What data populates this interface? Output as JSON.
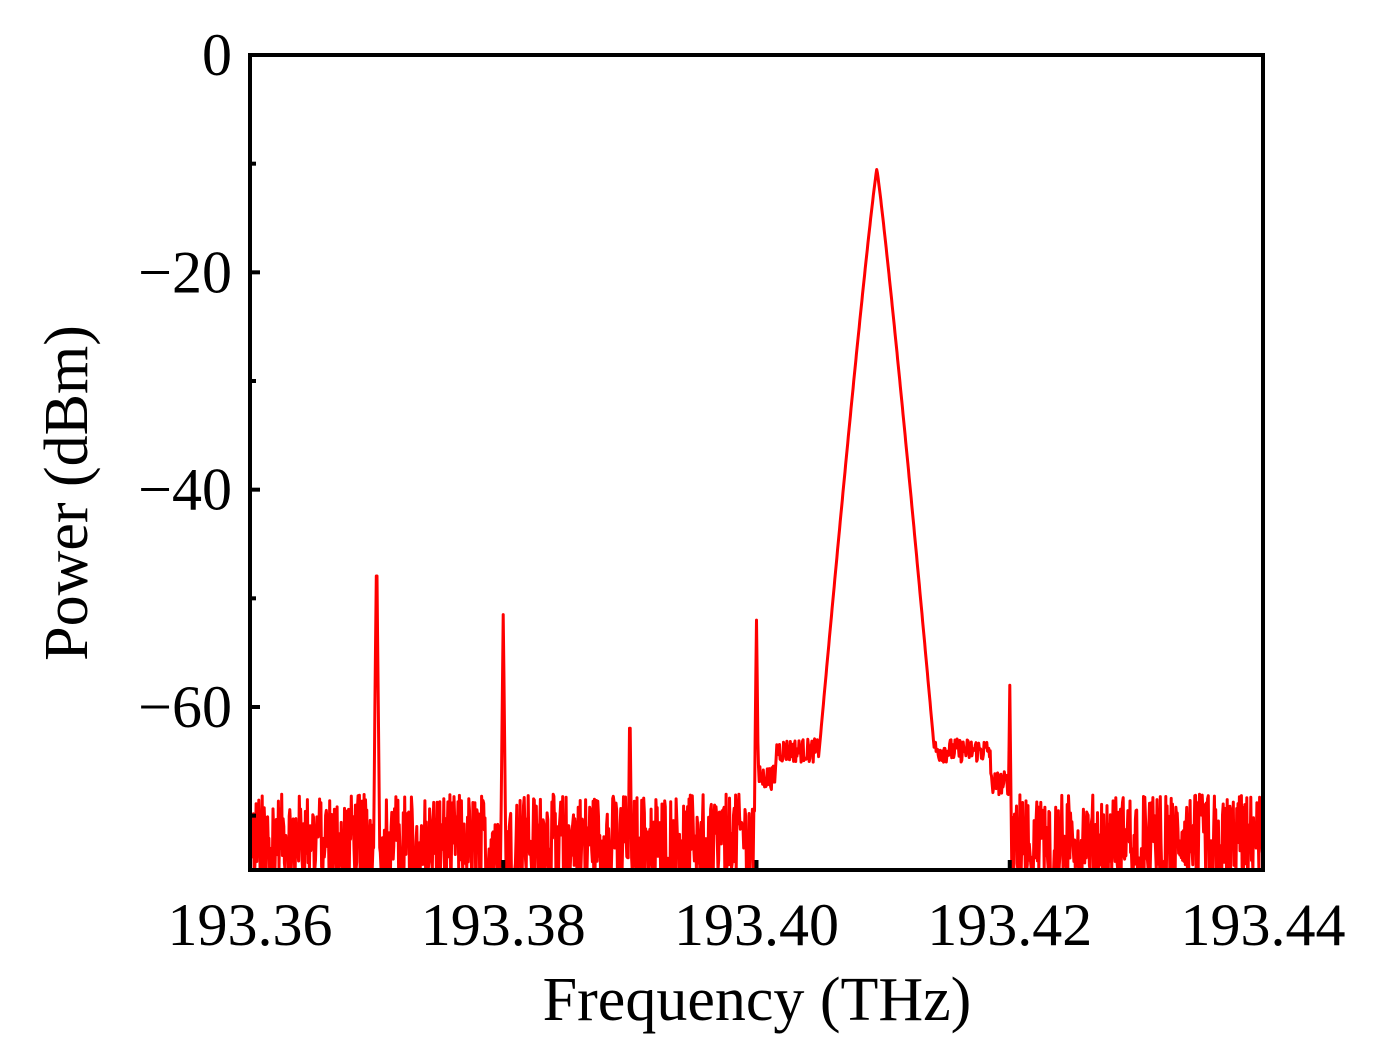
{
  "chart_data": {
    "type": "line",
    "xlabel": "Frequency  (THz)",
    "ylabel": "Power (dBm)",
    "xlim": [
      193.36,
      193.44
    ],
    "ylim": [
      -75,
      0
    ],
    "x_ticks": [
      193.36,
      193.38,
      193.4,
      193.42,
      193.44
    ],
    "x_tick_labels": [
      "193.36",
      "193.38",
      "193.40",
      "193.42",
      "193.44"
    ],
    "y_ticks": [
      0,
      -20,
      -40,
      -60
    ],
    "y_tick_labels": [
      "0",
      "−20",
      "−40",
      "−60"
    ],
    "y_minor_ticks": [
      -10,
      -30,
      -50,
      -70
    ],
    "grid": false,
    "series_color": "#ff0000",
    "noise_floor_dbm": [
      -75,
      -68
    ],
    "peaks": [
      {
        "x": 193.37,
        "y": -45.5
      },
      {
        "x": 193.38,
        "y": -51.5
      },
      {
        "x": 193.39,
        "y": -59.5
      },
      {
        "x": 193.4,
        "y": -52.0
      },
      {
        "x": 193.4095,
        "y": -10.5
      },
      {
        "x": 193.42,
        "y": -58.0
      }
    ],
    "shoulder_plateau": {
      "x_range": [
        193.4,
        193.42
      ],
      "y": -62
    }
  }
}
